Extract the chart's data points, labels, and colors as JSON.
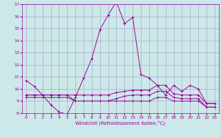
{
  "xlabel": "Windchill (Refroidissement éolien,°C)",
  "bg_color": "#cce8e8",
  "grid_color": "#aaaacc",
  "line_color": "#990099",
  "xlim": [
    -0.5,
    23.5
  ],
  "ylim": [
    8,
    17
  ],
  "xticks": [
    0,
    1,
    2,
    3,
    4,
    5,
    6,
    7,
    8,
    9,
    10,
    11,
    12,
    13,
    14,
    15,
    16,
    17,
    18,
    19,
    20,
    21,
    22,
    23
  ],
  "yticks": [
    8,
    9,
    10,
    11,
    12,
    13,
    14,
    15,
    16,
    17
  ],
  "lines": [
    [
      10.7,
      10.2,
      9.5,
      8.7,
      8.1,
      7.9,
      9.3,
      10.9,
      12.5,
      14.9,
      16.1,
      17.2,
      15.4,
      15.9,
      11.2,
      10.9,
      10.3,
      9.5,
      10.3,
      9.8,
      10.3,
      10.0,
      8.8,
      8.8
    ],
    [
      9.5,
      9.5,
      9.5,
      9.5,
      9.5,
      9.5,
      9.5,
      9.5,
      9.5,
      9.5,
      9.5,
      9.7,
      9.8,
      9.9,
      9.9,
      9.9,
      10.3,
      10.3,
      9.6,
      9.5,
      9.5,
      9.5,
      8.8,
      8.8
    ],
    [
      9.5,
      9.5,
      9.5,
      9.5,
      9.5,
      9.5,
      9.0,
      9.0,
      9.0,
      9.0,
      9.0,
      9.2,
      9.4,
      9.5,
      9.5,
      9.5,
      9.8,
      9.8,
      9.3,
      9.2,
      9.2,
      9.2,
      8.5,
      8.5
    ],
    [
      9.3,
      9.3,
      9.3,
      9.3,
      9.3,
      9.3,
      9.0,
      9.0,
      9.0,
      9.0,
      9.0,
      9.0,
      9.0,
      9.0,
      9.0,
      9.0,
      9.3,
      9.3,
      9.0,
      9.0,
      9.0,
      9.0,
      8.5,
      8.5
    ]
  ]
}
